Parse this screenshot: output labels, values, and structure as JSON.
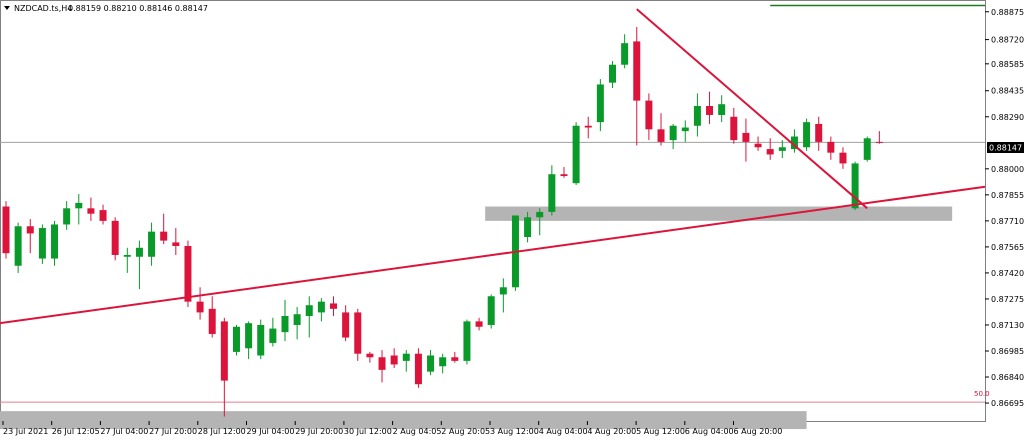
{
  "header": {
    "symbol": "NZDCAD.ts,H4",
    "ohlc": "0.88159 0.88210 0.88146 0.88147"
  },
  "colors": {
    "bull": "#0a9a2a",
    "bear": "#dc143c",
    "trend": "#dc143c",
    "zone": "#b4b4b4",
    "resistance": "#1f7a1f",
    "grid": "#c8c8c8"
  },
  "fib_label": "50.0",
  "chart_data": {
    "type": "candlestick",
    "symbol": "NZDCAD.ts",
    "timeframe": "H4",
    "ylim": [
      0.86595,
      0.88935
    ],
    "y_ticks": [
      "0.88875",
      "0.88720",
      "0.88585",
      "0.88435",
      "0.88290",
      "0.88147",
      "0.88000",
      "0.87855",
      "0.87710",
      "0.87565",
      "0.87420",
      "0.87275",
      "0.87130",
      "0.86985",
      "0.86840",
      "0.86695"
    ],
    "current_price": "0.88147",
    "x_ticks": [
      "23 Jul 2021",
      "26 Jul 12:05",
      "27 Jul 04:00",
      "27 Jul 20:00",
      "28 Jul 12:00",
      "29 Jul 04:00",
      "29 Jul 20:00",
      "30 Jul 12:00",
      "2 Aug 04:05",
      "2 Aug 20:05",
      "3 Aug 12:00",
      "4 Aug 04:00",
      "4 Aug 20:00",
      "5 Aug 12:00",
      "6 Aug 04:00",
      "6 Aug 20:00"
    ],
    "candles": [
      {
        "o": 0.8779,
        "h": 0.8782,
        "l": 0.875,
        "c": 0.8753
      },
      {
        "o": 0.8746,
        "h": 0.877,
        "l": 0.8742,
        "c": 0.8768
      },
      {
        "o": 0.8768,
        "h": 0.8772,
        "l": 0.8753,
        "c": 0.8764
      },
      {
        "o": 0.875,
        "h": 0.8769,
        "l": 0.8747,
        "c": 0.8767
      },
      {
        "o": 0.875,
        "h": 0.8771,
        "l": 0.8746,
        "c": 0.8769
      },
      {
        "o": 0.8769,
        "h": 0.8782,
        "l": 0.8766,
        "c": 0.8778
      },
      {
        "o": 0.8778,
        "h": 0.8786,
        "l": 0.8769,
        "c": 0.8781
      },
      {
        "o": 0.8778,
        "h": 0.8784,
        "l": 0.8771,
        "c": 0.8775
      },
      {
        "o": 0.8777,
        "h": 0.878,
        "l": 0.8769,
        "c": 0.8771
      },
      {
        "o": 0.8771,
        "h": 0.8773,
        "l": 0.8749,
        "c": 0.8752
      },
      {
        "o": 0.8751,
        "h": 0.8756,
        "l": 0.8742,
        "c": 0.8752
      },
      {
        "o": 0.8751,
        "h": 0.876,
        "l": 0.8733,
        "c": 0.8756
      },
      {
        "o": 0.8751,
        "h": 0.877,
        "l": 0.8746,
        "c": 0.8765
      },
      {
        "o": 0.8765,
        "h": 0.8775,
        "l": 0.8758,
        "c": 0.876
      },
      {
        "o": 0.8759,
        "h": 0.8767,
        "l": 0.8752,
        "c": 0.8757
      },
      {
        "o": 0.8757,
        "h": 0.876,
        "l": 0.8723,
        "c": 0.8726
      },
      {
        "o": 0.8726,
        "h": 0.8734,
        "l": 0.8716,
        "c": 0.872
      },
      {
        "o": 0.8722,
        "h": 0.8729,
        "l": 0.8706,
        "c": 0.8708
      },
      {
        "o": 0.8715,
        "h": 0.8717,
        "l": 0.8662,
        "c": 0.8682
      },
      {
        "o": 0.8698,
        "h": 0.8713,
        "l": 0.8696,
        "c": 0.8712
      },
      {
        "o": 0.87,
        "h": 0.8715,
        "l": 0.8694,
        "c": 0.8714
      },
      {
        "o": 0.8696,
        "h": 0.8716,
        "l": 0.8694,
        "c": 0.8713
      },
      {
        "o": 0.8703,
        "h": 0.8717,
        "l": 0.8701,
        "c": 0.8711
      },
      {
        "o": 0.8709,
        "h": 0.8727,
        "l": 0.8704,
        "c": 0.8718
      },
      {
        "o": 0.8713,
        "h": 0.8723,
        "l": 0.8705,
        "c": 0.8719
      },
      {
        "o": 0.8718,
        "h": 0.8729,
        "l": 0.8706,
        "c": 0.8724
      },
      {
        "o": 0.872,
        "h": 0.8728,
        "l": 0.8715,
        "c": 0.8726
      },
      {
        "o": 0.8725,
        "h": 0.8729,
        "l": 0.8718,
        "c": 0.8722
      },
      {
        "o": 0.872,
        "h": 0.8724,
        "l": 0.8704,
        "c": 0.8706
      },
      {
        "o": 0.872,
        "h": 0.8722,
        "l": 0.8693,
        "c": 0.8697
      },
      {
        "o": 0.8697,
        "h": 0.8698,
        "l": 0.8692,
        "c": 0.8695
      },
      {
        "o": 0.8695,
        "h": 0.8699,
        "l": 0.8681,
        "c": 0.8688
      },
      {
        "o": 0.8696,
        "h": 0.87,
        "l": 0.8689,
        "c": 0.8691
      },
      {
        "o": 0.8693,
        "h": 0.8699,
        "l": 0.8687,
        "c": 0.8697
      },
      {
        "o": 0.8697,
        "h": 0.87,
        "l": 0.8678,
        "c": 0.868
      },
      {
        "o": 0.8687,
        "h": 0.8699,
        "l": 0.8685,
        "c": 0.8696
      },
      {
        "o": 0.869,
        "h": 0.8697,
        "l": 0.8686,
        "c": 0.8695
      },
      {
        "o": 0.8695,
        "h": 0.8698,
        "l": 0.8692,
        "c": 0.8693
      },
      {
        "o": 0.8693,
        "h": 0.8716,
        "l": 0.8691,
        "c": 0.8715
      },
      {
        "o": 0.8715,
        "h": 0.8717,
        "l": 0.871,
        "c": 0.8712
      },
      {
        "o": 0.8713,
        "h": 0.873,
        "l": 0.8711,
        "c": 0.8729
      },
      {
        "o": 0.873,
        "h": 0.8739,
        "l": 0.872,
        "c": 0.8734
      },
      {
        "o": 0.8734,
        "h": 0.8774,
        "l": 0.8732,
        "c": 0.8774
      },
      {
        "o": 0.8762,
        "h": 0.8776,
        "l": 0.8759,
        "c": 0.8773
      },
      {
        "o": 0.8773,
        "h": 0.8778,
        "l": 0.8763,
        "c": 0.8776
      },
      {
        "o": 0.8776,
        "h": 0.8802,
        "l": 0.8774,
        "c": 0.8797
      },
      {
        "o": 0.8797,
        "h": 0.8801,
        "l": 0.8795,
        "c": 0.8796
      },
      {
        "o": 0.8792,
        "h": 0.8826,
        "l": 0.8791,
        "c": 0.8824
      },
      {
        "o": 0.8824,
        "h": 0.8829,
        "l": 0.8817,
        "c": 0.8823
      },
      {
        "o": 0.8826,
        "h": 0.885,
        "l": 0.8821,
        "c": 0.8847
      },
      {
        "o": 0.8848,
        "h": 0.886,
        "l": 0.8845,
        "c": 0.8858
      },
      {
        "o": 0.8858,
        "h": 0.8875,
        "l": 0.8856,
        "c": 0.887
      },
      {
        "o": 0.8871,
        "h": 0.8879,
        "l": 0.8813,
        "c": 0.8838
      },
      {
        "o": 0.8838,
        "h": 0.8842,
        "l": 0.8816,
        "c": 0.8822
      },
      {
        "o": 0.8822,
        "h": 0.8831,
        "l": 0.8813,
        "c": 0.8815
      },
      {
        "o": 0.8816,
        "h": 0.8825,
        "l": 0.8811,
        "c": 0.8824
      },
      {
        "o": 0.8821,
        "h": 0.8827,
        "l": 0.8815,
        "c": 0.8823
      },
      {
        "o": 0.8824,
        "h": 0.8842,
        "l": 0.8818,
        "c": 0.8835
      },
      {
        "o": 0.8835,
        "h": 0.8843,
        "l": 0.8825,
        "c": 0.883
      },
      {
        "o": 0.883,
        "h": 0.8841,
        "l": 0.8826,
        "c": 0.8836
      },
      {
        "o": 0.8829,
        "h": 0.8834,
        "l": 0.8814,
        "c": 0.8816
      },
      {
        "o": 0.882,
        "h": 0.8828,
        "l": 0.8804,
        "c": 0.8815
      },
      {
        "o": 0.8814,
        "h": 0.8818,
        "l": 0.881,
        "c": 0.8812
      },
      {
        "o": 0.8811,
        "h": 0.8817,
        "l": 0.8805,
        "c": 0.8808
      },
      {
        "o": 0.881,
        "h": 0.8816,
        "l": 0.8806,
        "c": 0.8812
      },
      {
        "o": 0.8811,
        "h": 0.8822,
        "l": 0.8809,
        "c": 0.8818
      },
      {
        "o": 0.8812,
        "h": 0.8828,
        "l": 0.881,
        "c": 0.8826
      },
      {
        "o": 0.8825,
        "h": 0.8829,
        "l": 0.881,
        "c": 0.8815
      },
      {
        "o": 0.8815,
        "h": 0.8818,
        "l": 0.8805,
        "c": 0.8809
      },
      {
        "o": 0.8809,
        "h": 0.8812,
        "l": 0.88,
        "c": 0.8803
      },
      {
        "o": 0.8778,
        "h": 0.8804,
        "l": 0.8777,
        "c": 0.8803
      },
      {
        "o": 0.8805,
        "h": 0.8818,
        "l": 0.8804,
        "c": 0.8817
      },
      {
        "o": 0.8815,
        "h": 0.8821,
        "l": 0.8814,
        "c": 0.88147
      }
    ],
    "lines": [
      {
        "name": "rising-trendline",
        "from": {
          "i": -1,
          "y": 0.8714
        },
        "to": {
          "i": 86,
          "y": 0.879
        }
      },
      {
        "name": "falling-trendline",
        "from": {
          "i": 52,
          "y": 0.8889
        },
        "to": {
          "i": 71,
          "y": 0.8778
        }
      },
      {
        "name": "resistance-level",
        "from": {
          "i": 63,
          "y": 0.8891
        },
        "to": {
          "i": 86,
          "y": 0.8891
        }
      },
      {
        "name": "current-price-line",
        "from": {
          "i": -1,
          "y": 0.88147
        },
        "to": {
          "i": 86,
          "y": 0.88147
        }
      },
      {
        "name": "fib-50-line",
        "from": {
          "i": -1,
          "y": 0.867
        },
        "to": {
          "i": 86,
          "y": 0.867
        }
      }
    ],
    "zones": [
      {
        "name": "support-zone-upper",
        "from_i": 40,
        "to_i": 78,
        "y_top": 0.8779,
        "y_bottom": 0.8771
      },
      {
        "name": "support-zone-lower",
        "from_i": -1,
        "to_i": 66,
        "y_top": 0.8665,
        "y_bottom": 0.8655
      }
    ],
    "grid": false,
    "legend": "none"
  }
}
